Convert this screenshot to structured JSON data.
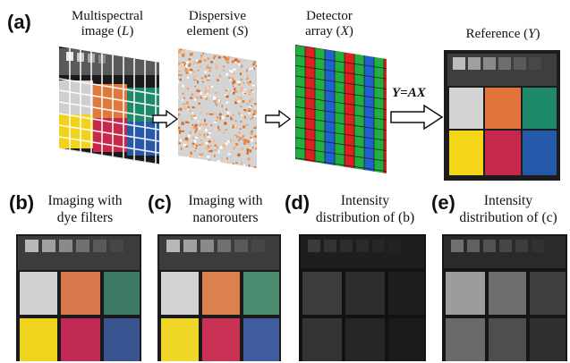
{
  "panels": {
    "a": "(a)",
    "b": "(b)",
    "c": "(c)",
    "d": "(d)",
    "e": "(e)"
  },
  "pipeline": {
    "multispectral": {
      "line1": "Multispectral",
      "line2_text": "image (",
      "symbol": "L",
      "close": ")"
    },
    "dispersive": {
      "line1": "Dispersive",
      "line2_text": "element  (",
      "symbol": "S",
      "close": ")"
    },
    "detector": {
      "line1": "Detector",
      "line2_text": "array (",
      "symbol": "X",
      "close": ")"
    },
    "reference": {
      "text": "Reference (",
      "symbol": "Y",
      "close": ")"
    },
    "equation": "Y=AX"
  },
  "bottom": {
    "b": {
      "line1": "Imaging with",
      "line2": "dye filters"
    },
    "c": {
      "line1": "Imaging with",
      "line2": "nanorouters"
    },
    "d": {
      "line1": "Intensity",
      "line2": "distribution of (b)"
    },
    "e": {
      "line1": "Intensity",
      "line2": "distribution of (c)"
    }
  },
  "colors": {
    "orange": "#e07a3c",
    "green": "#1f8a6a",
    "yellow": "#f2d21a",
    "crimson": "#c8284a",
    "blue": "#2858a8",
    "grey": "#d8d8d8",
    "detector_red": "#e02020",
    "detector_green": "#20b040",
    "detector_blue": "#2060d0"
  }
}
